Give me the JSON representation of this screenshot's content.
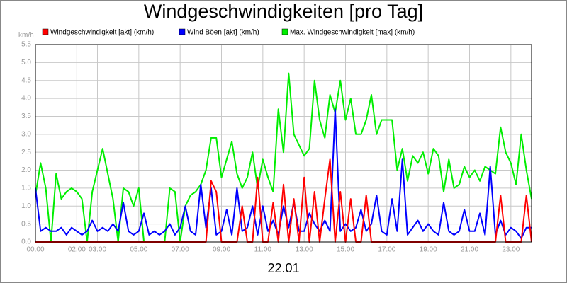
{
  "chart_data": {
    "type": "line",
    "title": "Windgeschwindigkeiten [pro Tag]",
    "y_unit": "km/h",
    "x_label": "22.01",
    "xlim": [
      0,
      24
    ],
    "ylim": [
      0,
      5.5
    ],
    "grid": true,
    "xticks": [
      {
        "value": 0,
        "label": "00:00"
      },
      {
        "value": 2,
        "label": "02:00"
      },
      {
        "value": 3,
        "label": "03:00"
      },
      {
        "value": 5,
        "label": "05:00"
      },
      {
        "value": 7,
        "label": "07:00"
      },
      {
        "value": 9,
        "label": "09:00"
      },
      {
        "value": 11,
        "label": "11:00"
      },
      {
        "value": 13,
        "label": "13:00"
      },
      {
        "value": 15,
        "label": "15:00"
      },
      {
        "value": 17,
        "label": "17:00"
      },
      {
        "value": 19,
        "label": "19:00"
      },
      {
        "value": 21,
        "label": "21:00"
      },
      {
        "value": 23,
        "label": "23:00"
      }
    ],
    "yticks": [
      {
        "value": 0,
        "label": "0.0"
      },
      {
        "value": 0.5,
        "label": "0.5"
      },
      {
        "value": 1,
        "label": "1.0"
      },
      {
        "value": 1.5,
        "label": "1.5"
      },
      {
        "value": 2,
        "label": "2.0"
      },
      {
        "value": 2.5,
        "label": "2.5"
      },
      {
        "value": 3,
        "label": "3.0"
      },
      {
        "value": 3.5,
        "label": "3.5"
      },
      {
        "value": 4,
        "label": "4.0"
      },
      {
        "value": 4.5,
        "label": "4.5"
      },
      {
        "value": 5,
        "label": "5.0"
      },
      {
        "value": 5.5,
        "label": "5.5"
      }
    ],
    "x": [
      0,
      0.25,
      0.5,
      0.75,
      1,
      1.25,
      1.5,
      1.75,
      2,
      2.25,
      2.5,
      2.75,
      3,
      3.25,
      3.5,
      3.75,
      4,
      4.25,
      4.5,
      4.75,
      5,
      5.25,
      5.5,
      5.75,
      6,
      6.25,
      6.5,
      6.75,
      7,
      7.25,
      7.5,
      7.75,
      8,
      8.25,
      8.5,
      8.75,
      9,
      9.25,
      9.5,
      9.75,
      10,
      10.25,
      10.5,
      10.75,
      11,
      11.25,
      11.5,
      11.75,
      12,
      12.25,
      12.5,
      12.75,
      13,
      13.25,
      13.5,
      13.75,
      14,
      14.25,
      14.5,
      14.75,
      15,
      15.25,
      15.5,
      15.75,
      16,
      16.25,
      16.5,
      16.75,
      17,
      17.25,
      17.5,
      17.75,
      18,
      18.25,
      18.5,
      18.75,
      19,
      19.25,
      19.5,
      19.75,
      20,
      20.25,
      20.5,
      20.75,
      21,
      21.25,
      21.5,
      21.75,
      22,
      22.25,
      22.5,
      22.75,
      23,
      23.25,
      23.5,
      23.75,
      24
    ],
    "series": [
      {
        "name": "Windgeschwindigkeit [akt] (km/h)",
        "color": "#ff0000",
        "values": [
          0,
          0,
          0,
          0,
          0,
          0,
          0,
          0,
          0,
          0,
          0,
          0,
          0,
          0,
          0,
          0,
          0,
          0,
          0,
          0,
          0,
          0,
          0,
          0,
          0,
          0,
          0,
          0,
          0,
          0,
          0,
          0,
          0,
          0,
          1.7,
          1.4,
          0,
          0,
          0,
          0,
          1.0,
          0,
          0,
          1.8,
          0,
          0,
          1.1,
          0,
          1.6,
          0,
          1.2,
          0,
          1.8,
          0,
          1.4,
          0,
          1.2,
          2.3,
          0,
          1.4,
          0,
          1.2,
          0,
          0,
          1.3,
          0,
          0,
          0,
          0,
          0,
          0,
          0,
          0,
          0,
          0,
          0,
          0,
          0,
          0,
          0,
          0,
          0,
          0,
          0,
          0,
          0,
          0,
          0,
          0,
          0,
          1.3,
          0,
          0,
          0,
          0,
          1.3,
          0
        ]
      },
      {
        "name": "Wind Böen [akt] (km/h)",
        "color": "#0000ff",
        "values": [
          1.5,
          0.3,
          0.4,
          0.3,
          0.3,
          0.4,
          0.2,
          0.4,
          0.3,
          0.2,
          0.3,
          0.6,
          0.3,
          0.4,
          0.3,
          0.5,
          0.3,
          1.1,
          0.3,
          0.2,
          0.3,
          0.8,
          0.2,
          0.3,
          0.2,
          0.3,
          0.5,
          0.2,
          0.4,
          1.0,
          0.3,
          0.2,
          1.6,
          0.4,
          1.5,
          0.2,
          0.3,
          0.9,
          0.2,
          1.5,
          0.3,
          0.4,
          1.0,
          0.2,
          1.0,
          0.3,
          0.6,
          0.2,
          1.0,
          0.4,
          1.1,
          0.3,
          0.3,
          0.8,
          0.5,
          0.3,
          0.6,
          0.3,
          3.7,
          0.3,
          0.5,
          0.3,
          0.4,
          0.9,
          0.3,
          0.5,
          1.3,
          0.3,
          0.2,
          1.2,
          0.3,
          2.3,
          0.2,
          0.4,
          0.6,
          0.3,
          0.5,
          0.3,
          0.2,
          1.1,
          0.3,
          0.2,
          0.3,
          0.9,
          0.3,
          0.3,
          0.8,
          0.2,
          2.1,
          0.2,
          0.6,
          0.2,
          0.4,
          0.3,
          0.1,
          0.4,
          0.4
        ]
      },
      {
        "name": "Max. Windgeschwindigkeit [max] (km/h)",
        "color": "#00ee00",
        "values": [
          1.3,
          2.2,
          1.5,
          0,
          1.9,
          1.2,
          1.4,
          1.5,
          1.4,
          1.2,
          0,
          1.4,
          2.0,
          2.6,
          1.9,
          1.2,
          0,
          1.5,
          1.4,
          1.0,
          1.5,
          0,
          0,
          0,
          0,
          0,
          1.5,
          1.4,
          0,
          1.0,
          1.3,
          1.4,
          1.6,
          2.0,
          2.9,
          2.9,
          1.8,
          2.3,
          2.8,
          1.9,
          1.5,
          1.8,
          2.5,
          1.5,
          2.3,
          1.8,
          1.4,
          3.7,
          2.5,
          4.7,
          3.0,
          2.7,
          2.4,
          2.6,
          4.5,
          3.4,
          2.9,
          4.1,
          3.6,
          4.5,
          3.4,
          4.0,
          3.0,
          3.0,
          3.4,
          4.1,
          3.0,
          3.4,
          3.4,
          3.4,
          2.0,
          2.6,
          1.7,
          2.4,
          2.2,
          2.5,
          1.9,
          2.6,
          2.4,
          1.4,
          2.3,
          1.5,
          1.6,
          2.1,
          1.8,
          2.0,
          1.7,
          2.1,
          2.0,
          1.9,
          3.2,
          2.5,
          2.2,
          1.6,
          3.0,
          2.0,
          1.2
        ]
      }
    ]
  }
}
